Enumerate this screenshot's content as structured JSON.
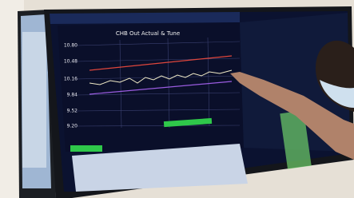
{
  "screen": {
    "chart": {
      "title": "CHB Out Actual & Tune",
      "y_axis_labels": [
        "10.80",
        "10.48",
        "10.16",
        "9.84",
        "9.52",
        "9.20"
      ]
    }
  }
}
